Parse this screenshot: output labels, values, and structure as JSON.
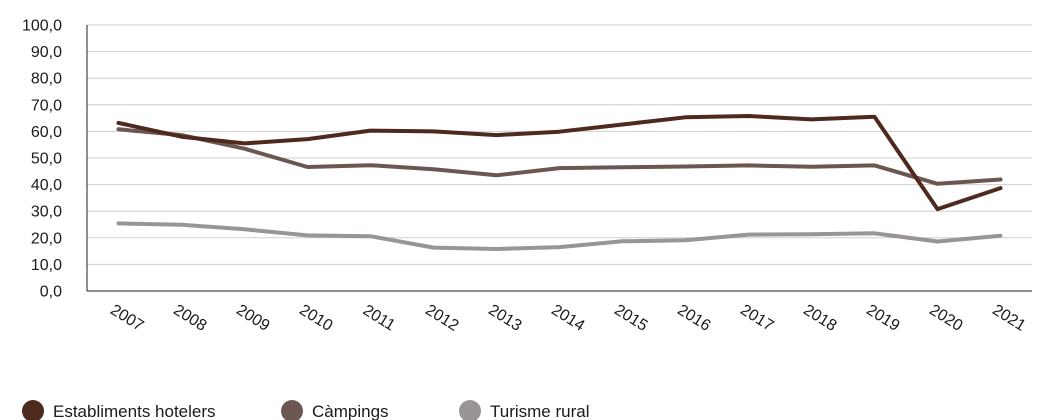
{
  "chart_data": {
    "type": "line",
    "title": "",
    "xlabel": "",
    "ylabel": "",
    "x": [
      "2007",
      "2008",
      "2009",
      "2010",
      "2011",
      "2012",
      "2013",
      "2014",
      "2015",
      "2016",
      "2017",
      "2018",
      "2019",
      "2020",
      "2021"
    ],
    "ylim": [
      0,
      100
    ],
    "yticks": [
      "0,0",
      "10,0",
      "20,0",
      "30,0",
      "40,0",
      "50,0",
      "60,0",
      "70,0",
      "80,0",
      "90,0",
      "100,0"
    ],
    "grid": true,
    "legend_position": "bottom-left",
    "series": [
      {
        "name": "Establiments hotelers",
        "color": "#4e2a1e",
        "values": [
          63.2,
          58.0,
          55.5,
          57.1,
          60.3,
          60.0,
          58.6,
          59.9,
          62.6,
          65.3,
          65.8,
          64.5,
          65.5,
          30.8,
          38.7
        ]
      },
      {
        "name": "Càmpings",
        "color": "#6b5652",
        "values": [
          60.8,
          58.6,
          53.5,
          46.6,
          47.3,
          45.8,
          43.5,
          46.2,
          46.5,
          46.8,
          47.2,
          46.7,
          47.2,
          40.3,
          41.9
        ]
      },
      {
        "name": "Turisme rural",
        "color": "#999595",
        "values": [
          25.4,
          24.9,
          23.2,
          20.9,
          20.6,
          16.3,
          15.8,
          16.5,
          18.7,
          19.1,
          21.2,
          21.3,
          21.7,
          18.6,
          20.8
        ]
      }
    ]
  }
}
